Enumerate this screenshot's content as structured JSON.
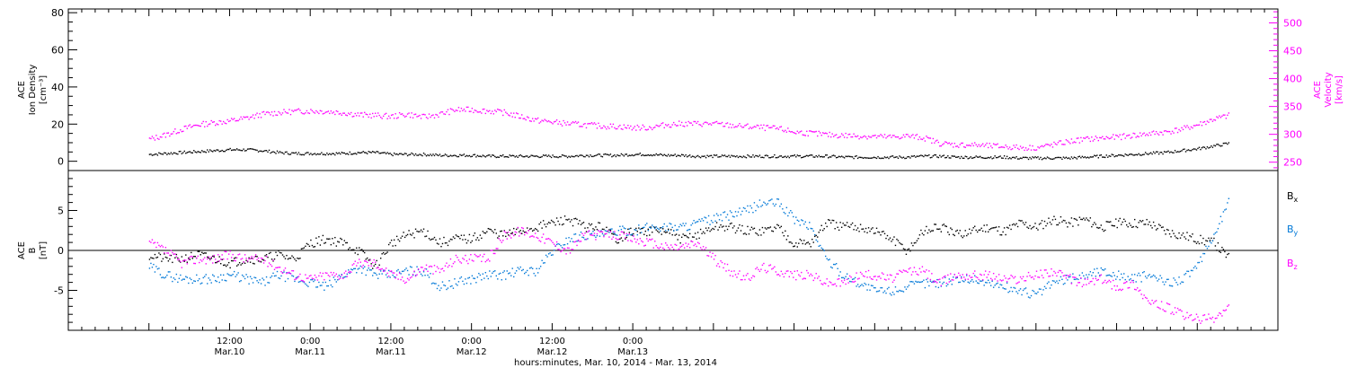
{
  "chart_data": [
    {
      "type": "scatter",
      "panel": "top",
      "ylabel_left": [
        "ACE",
        "Ion Density",
        "[cm⁻³]"
      ],
      "ylabel_right": [
        "ACE",
        "Velocity",
        "[km/s]"
      ],
      "ylim": [
        -5,
        82
      ],
      "ylim_right": [
        235,
        525
      ],
      "yticks_left": [
        0,
        20,
        40,
        60,
        80
      ],
      "yticks_right": [
        250,
        300,
        350,
        400,
        450,
        500
      ],
      "series": [
        {
          "color": "#000000",
          "axis": "left",
          "x": [
            0,
            0.1,
            0.2,
            0.3,
            0.4,
            0.5,
            0.6,
            0.7,
            0.8,
            0.9,
            1.0,
            1.1,
            1.2,
            1.3,
            1.4,
            1.5,
            1.6,
            1.7,
            1.8,
            1.9,
            2.0,
            2.1,
            2.2,
            2.3,
            2.4,
            2.5,
            2.6,
            2.7,
            2.8,
            2.9,
            3.0,
            3.1,
            3.2,
            3.3,
            3.4,
            3.5,
            3.6,
            3.7,
            3.8,
            3.9,
            4.0,
            4.1,
            4.2,
            4.3,
            4.4,
            4.5,
            4.6,
            4.7,
            4.8,
            4.9,
            5.0,
            5.1,
            5.2,
            5.3,
            5.4,
            5.5,
            5.6,
            5.7,
            5.8,
            5.9,
            6.0,
            6.1,
            6.2,
            6.3,
            6.4,
            6.5,
            6.6,
            6.7
          ],
          "y": [
            4,
            4.5,
            5,
            5.5,
            6,
            6.5,
            6.5,
            6,
            5,
            4.5,
            4.5,
            4.5,
            4.5,
            5,
            5,
            4,
            4,
            4,
            3.5,
            3.5,
            3.5,
            3,
            3,
            3,
            3,
            3,
            3,
            3.5,
            3.5,
            3.5,
            4,
            4,
            3.5,
            3.5,
            3,
            3,
            3,
            3,
            3,
            3,
            3,
            3,
            3,
            2.5,
            2.5,
            2.5,
            2.5,
            2.5,
            3,
            3,
            2.5,
            2.5,
            2.5,
            2.5,
            2,
            2,
            2,
            2,
            2.5,
            3,
            3.5,
            4,
            4.5,
            5,
            6,
            7,
            8.5,
            10
          ]
        },
        {
          "color": "#ff00ff",
          "axis": "right",
          "x": [
            0,
            0.1,
            0.2,
            0.3,
            0.4,
            0.5,
            0.6,
            0.7,
            0.8,
            0.9,
            1.0,
            1.1,
            1.2,
            1.3,
            1.4,
            1.5,
            1.6,
            1.7,
            1.8,
            1.9,
            2.0,
            2.1,
            2.2,
            2.3,
            2.4,
            2.5,
            2.6,
            2.7,
            2.8,
            2.9,
            3.0,
            3.1,
            3.2,
            3.3,
            3.4,
            3.5,
            3.6,
            3.7,
            3.8,
            3.9,
            4.0,
            4.1,
            4.2,
            4.3,
            4.4,
            4.5,
            4.6,
            4.7,
            4.8,
            4.9,
            5.0,
            5.1,
            5.2,
            5.3,
            5.4,
            5.5,
            5.6,
            5.7,
            5.8,
            5.9,
            6.0,
            6.1,
            6.2,
            6.3,
            6.4,
            6.5,
            6.6,
            6.7
          ],
          "y": [
            292,
            300,
            310,
            318,
            322,
            325,
            330,
            337,
            340,
            342,
            343,
            342,
            340,
            336,
            335,
            333,
            337,
            332,
            337,
            345,
            345,
            343,
            340,
            333,
            326,
            323,
            320,
            318,
            316,
            315,
            313,
            313,
            318,
            320,
            320,
            320,
            317,
            315,
            313,
            311,
            305,
            303,
            300,
            299,
            298,
            297,
            296,
            298,
            295,
            285,
            282,
            282,
            280,
            279,
            277,
            277,
            282,
            288,
            292,
            294,
            296,
            299,
            302,
            305,
            310,
            318,
            328,
            335
          ]
        }
      ]
    },
    {
      "type": "scatter",
      "panel": "bottom",
      "ylabel_left": [
        "ACE",
        "B",
        "[nT]"
      ],
      "ylim": [
        -10,
        10
      ],
      "yticks_left": [
        -5,
        0,
        5
      ],
      "legend": [
        "Bₓ",
        "Bᵧ",
        "B_z"
      ],
      "legend_display": [
        [
          "B",
          "x"
        ],
        [
          "B",
          "y"
        ],
        [
          "B",
          "z"
        ]
      ],
      "legend_placement": "right",
      "series": [
        {
          "name": "Bx",
          "color": "#000000",
          "x": [
            0,
            0.1,
            0.2,
            0.3,
            0.4,
            0.5,
            0.6,
            0.7,
            0.8,
            0.9,
            1.0,
            1.1,
            1.2,
            1.3,
            1.4,
            1.5,
            1.6,
            1.7,
            1.8,
            1.9,
            2.0,
            2.1,
            2.2,
            2.3,
            2.4,
            2.5,
            2.6,
            2.7,
            2.8,
            2.9,
            3.0,
            3.1,
            3.2,
            3.3,
            3.4,
            3.5,
            3.6,
            3.7,
            3.8,
            3.9,
            4.0,
            4.1,
            4.2,
            4.3,
            4.4,
            4.5,
            4.6,
            4.7,
            4.8,
            4.9,
            5.0,
            5.1,
            5.2,
            5.3,
            5.4,
            5.5,
            5.6,
            5.7,
            5.8,
            5.9,
            6.0,
            6.1,
            6.2,
            6.3,
            6.4,
            6.5,
            6.6,
            6.7
          ],
          "y": [
            -0.5,
            -1,
            -1,
            -0.5,
            -1,
            -1.5,
            -1,
            -1,
            -0.5,
            -1,
            1,
            1.5,
            1,
            0,
            -2,
            1,
            2,
            2.5,
            1,
            1.5,
            1.5,
            2.5,
            2,
            2.5,
            3,
            3.5,
            4,
            3,
            3,
            1.5,
            2.5,
            2.5,
            2.5,
            1.5,
            2,
            3,
            3,
            2.5,
            2.5,
            3,
            1,
            1,
            3.5,
            3,
            3,
            2.5,
            1.5,
            0,
            2.5,
            3,
            2,
            2.5,
            3,
            2.5,
            3.5,
            3,
            4,
            3.5,
            4,
            3,
            3.5,
            3.5,
            3.5,
            2.5,
            2,
            1.5,
            1,
            -1
          ]
        },
        {
          "name": "By",
          "color": "#0078d7",
          "x": [
            0,
            0.1,
            0.2,
            0.3,
            0.4,
            0.5,
            0.6,
            0.7,
            0.8,
            0.9,
            1.0,
            1.1,
            1.2,
            1.3,
            1.4,
            1.5,
            1.6,
            1.7,
            1.8,
            1.9,
            2.0,
            2.1,
            2.2,
            2.3,
            2.4,
            2.5,
            2.6,
            2.7,
            2.8,
            2.9,
            3.0,
            3.1,
            3.2,
            3.3,
            3.4,
            3.5,
            3.6,
            3.7,
            3.8,
            3.9,
            4.0,
            4.1,
            4.2,
            4.3,
            4.4,
            4.5,
            4.6,
            4.7,
            4.8,
            4.9,
            5.0,
            5.1,
            5.2,
            5.3,
            5.4,
            5.5,
            5.6,
            5.7,
            5.8,
            5.9,
            6.0,
            6.1,
            6.2,
            6.3,
            6.4,
            6.5,
            6.6,
            6.7
          ],
          "y": [
            -2,
            -3,
            -3.5,
            -3.5,
            -3.5,
            -3,
            -3.5,
            -4,
            -3,
            -3.5,
            -4,
            -4.5,
            -3,
            -2,
            -3,
            -3,
            -2.5,
            -2.5,
            -4.5,
            -4,
            -3.5,
            -3,
            -3,
            -2.5,
            -2.5,
            0,
            1.5,
            2,
            2,
            2.5,
            2.5,
            3,
            3,
            3,
            3.5,
            4,
            4.5,
            5,
            6,
            6,
            4,
            3,
            -1,
            -3,
            -4,
            -5,
            -5,
            -4.5,
            -4,
            -4,
            -3.5,
            -3.5,
            -4,
            -4.5,
            -5,
            -5.5,
            -4,
            -3.5,
            -3,
            -2.5,
            -3,
            -3.5,
            -3,
            -4,
            -3.5,
            -2,
            2,
            6.5
          ]
        },
        {
          "name": "Bz",
          "color": "#ff00ff",
          "x": [
            0,
            0.1,
            0.2,
            0.3,
            0.4,
            0.5,
            0.6,
            0.7,
            0.8,
            0.9,
            1.0,
            1.1,
            1.2,
            1.3,
            1.4,
            1.5,
            1.6,
            1.7,
            1.8,
            1.9,
            2.0,
            2.1,
            2.2,
            2.3,
            2.4,
            2.5,
            2.6,
            2.7,
            2.8,
            2.9,
            3.0,
            3.1,
            3.2,
            3.3,
            3.4,
            3.5,
            3.6,
            3.7,
            3.8,
            3.9,
            4.0,
            4.1,
            4.2,
            4.3,
            4.4,
            4.5,
            4.6,
            4.7,
            4.8,
            4.9,
            5.0,
            5.1,
            5.2,
            5.3,
            5.4,
            5.5,
            5.6,
            5.7,
            5.8,
            5.9,
            6.0,
            6.1,
            6.2,
            6.3,
            6.4,
            6.5,
            6.6,
            6.7
          ],
          "y": [
            1,
            0,
            -1.5,
            -1,
            -1,
            -0.5,
            -1,
            -1,
            -2,
            -3,
            -3.5,
            -3,
            -3,
            -1.5,
            -1.5,
            -3,
            -3.5,
            -2,
            -2.5,
            -1,
            -1,
            -1,
            2,
            2.5,
            2,
            1,
            0,
            2,
            2,
            2,
            1.5,
            1,
            0.5,
            0.5,
            1,
            -1,
            -2.5,
            -3.5,
            -2,
            -2.5,
            -3,
            -3,
            -4,
            -4,
            -3,
            -3,
            -3.5,
            -2.5,
            -2.5,
            -4,
            -3,
            -3,
            -3,
            -3.5,
            -3.5,
            -3,
            -2.5,
            -3.5,
            -4,
            -3.5,
            -4.5,
            -4,
            -6.5,
            -7,
            -8,
            -8.5,
            -8.5,
            -7
          ]
        }
      ]
    }
  ],
  "x_axis": {
    "tick_labels": [
      {
        "top": "12:00",
        "bottom": "Mar.10"
      },
      {
        "top": "0:00",
        "bottom": "Mar.11"
      },
      {
        "top": "12:00",
        "bottom": "Mar.11"
      },
      {
        "top": "0:00",
        "bottom": "Mar.12"
      },
      {
        "top": "12:00",
        "bottom": "Mar.12"
      },
      {
        "top": "0:00",
        "bottom": "Mar.13"
      }
    ],
    "title": "hours:minutes, Mar. 10, 2014 - Mar. 13, 2014"
  }
}
